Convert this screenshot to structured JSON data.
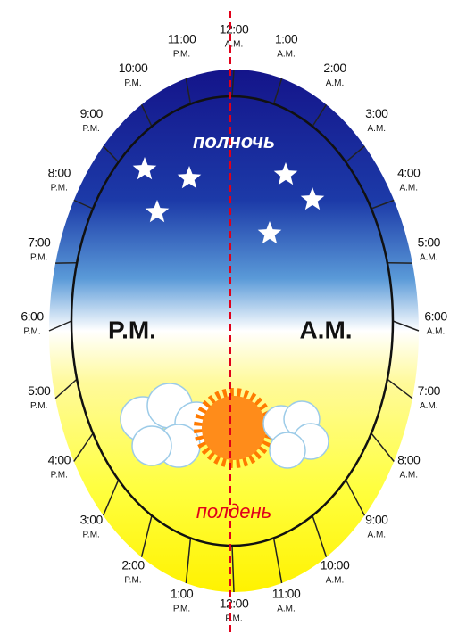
{
  "hours": [
    {
      "time": "12:00",
      "period": "A.M."
    },
    {
      "time": "1:00",
      "period": "A.M."
    },
    {
      "time": "2:00",
      "period": "A.M."
    },
    {
      "time": "3:00",
      "period": "A.M."
    },
    {
      "time": "4:00",
      "period": "A.M."
    },
    {
      "time": "5:00",
      "period": "A.M."
    },
    {
      "time": "6:00",
      "period": "A.M."
    },
    {
      "time": "7:00",
      "period": "A.M."
    },
    {
      "time": "8:00",
      "period": "A.M."
    },
    {
      "time": "9:00",
      "period": "A.M."
    },
    {
      "time": "10:00",
      "period": "A.M."
    },
    {
      "time": "11:00",
      "period": "A.M."
    },
    {
      "time": "12:00",
      "period": "P.M."
    },
    {
      "time": "1:00",
      "period": "P.M."
    },
    {
      "time": "2:00",
      "period": "P.M."
    },
    {
      "time": "3:00",
      "period": "P.M."
    },
    {
      "time": "4:00",
      "period": "P.M."
    },
    {
      "time": "5:00",
      "period": "P.M."
    },
    {
      "time": "6:00",
      "period": "P.M."
    },
    {
      "time": "7:00",
      "period": "P.M."
    },
    {
      "time": "8:00",
      "period": "P.M."
    },
    {
      "time": "9:00",
      "period": "P.M."
    },
    {
      "time": "10:00",
      "period": "P.M."
    },
    {
      "time": "11:00",
      "period": "P.M."
    }
  ],
  "labels": {
    "midnight": "полночь",
    "noon": "полдень",
    "pm": "P.M.",
    "am": "A.M."
  }
}
